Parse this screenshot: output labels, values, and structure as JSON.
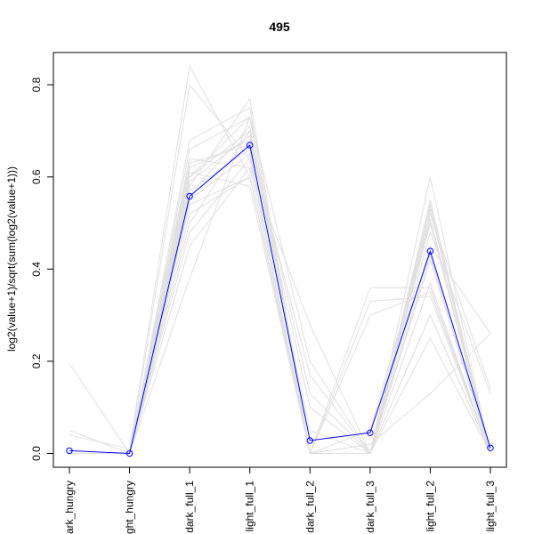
{
  "chart_data": {
    "type": "line",
    "title": "495",
    "xlabel": "",
    "ylabel": "log2(value+1)/sqrt(sum(log2(value+1)))",
    "categories": [
      "dark_hungry",
      "light_hungry",
      "dark_full_1",
      "light_full_1",
      "dark_full_2",
      "dark_full_3",
      "light_full_2",
      "light_full_3"
    ],
    "ylim": [
      -0.03,
      0.87
    ],
    "yticks": [
      0.0,
      0.2,
      0.4,
      0.6,
      0.8
    ],
    "ytick_labels": [
      "0.0",
      "0.2",
      "0.4",
      "0.6",
      "0.8"
    ],
    "grid": false,
    "highlight_color": "#0000ff",
    "background_color": "#e0e0e0",
    "highlight_series": {
      "values": [
        0.006,
        0.0,
        0.558,
        0.669,
        0.028,
        0.045,
        0.439,
        0.012
      ]
    },
    "background_series": [
      {
        "values": [
          0.195,
          0.0,
          0.38,
          0.73,
          0.2,
          0.0,
          0.25,
          0.0
        ]
      },
      {
        "values": [
          0.04,
          0.01,
          0.84,
          0.6,
          0.0,
          0.0,
          0.5,
          0.0
        ]
      },
      {
        "values": [
          0.0,
          0.0,
          0.8,
          0.64,
          0.0,
          0.0,
          0.43,
          0.0
        ]
      },
      {
        "values": [
          0.0,
          0.0,
          0.68,
          0.75,
          0.0,
          0.36,
          0.36,
          0.0
        ]
      },
      {
        "values": [
          0.0,
          0.0,
          0.45,
          0.62,
          0.28,
          0.0,
          0.45,
          0.26
        ]
      },
      {
        "values": [
          0.0,
          0.0,
          0.6,
          0.7,
          0.0,
          0.05,
          0.5,
          0.0
        ]
      },
      {
        "values": [
          0.0,
          0.0,
          0.62,
          0.68,
          0.1,
          0.0,
          0.54,
          0.0
        ]
      },
      {
        "values": [
          0.0,
          0.0,
          0.57,
          0.66,
          0.05,
          0.0,
          0.55,
          0.0
        ]
      },
      {
        "values": [
          0.0,
          0.0,
          0.52,
          0.6,
          0.0,
          0.3,
          0.35,
          0.0
        ]
      },
      {
        "values": [
          0.0,
          0.0,
          0.6,
          0.73,
          0.0,
          0.0,
          0.6,
          0.0
        ]
      },
      {
        "values": [
          0.0,
          0.0,
          0.55,
          0.65,
          0.0,
          0.0,
          0.48,
          0.13
        ]
      },
      {
        "values": [
          0.0,
          0.0,
          0.63,
          0.67,
          0.17,
          0.0,
          0.42,
          0.0
        ]
      },
      {
        "values": [
          0.05,
          0.0,
          0.5,
          0.7,
          0.0,
          0.0,
          0.3,
          0.0
        ]
      },
      {
        "values": [
          0.0,
          0.0,
          0.61,
          0.58,
          0.0,
          0.02,
          0.13,
          0.26
        ]
      },
      {
        "values": [
          0.0,
          0.0,
          0.58,
          0.77,
          0.0,
          0.0,
          0.53,
          0.0
        ]
      },
      {
        "values": [
          0.0,
          0.0,
          0.64,
          0.62,
          0.0,
          0.0,
          0.51,
          0.0
        ]
      },
      {
        "values": [
          0.0,
          0.0,
          0.59,
          0.69,
          0.13,
          0.0,
          0.37,
          0.0
        ]
      },
      {
        "values": [
          0.0,
          0.0,
          0.56,
          0.71,
          0.0,
          0.0,
          0.53,
          0.0
        ]
      },
      {
        "values": [
          0.0,
          0.0,
          0.48,
          0.64,
          0.0,
          0.0,
          0.3,
          0.0
        ]
      },
      {
        "values": [
          0.0,
          0.0,
          0.66,
          0.73,
          0.0,
          0.33,
          0.34,
          0.0
        ]
      },
      {
        "values": [
          0.0,
          0.0,
          0.54,
          0.6,
          0.0,
          0.0,
          0.52,
          0.14
        ]
      }
    ]
  }
}
